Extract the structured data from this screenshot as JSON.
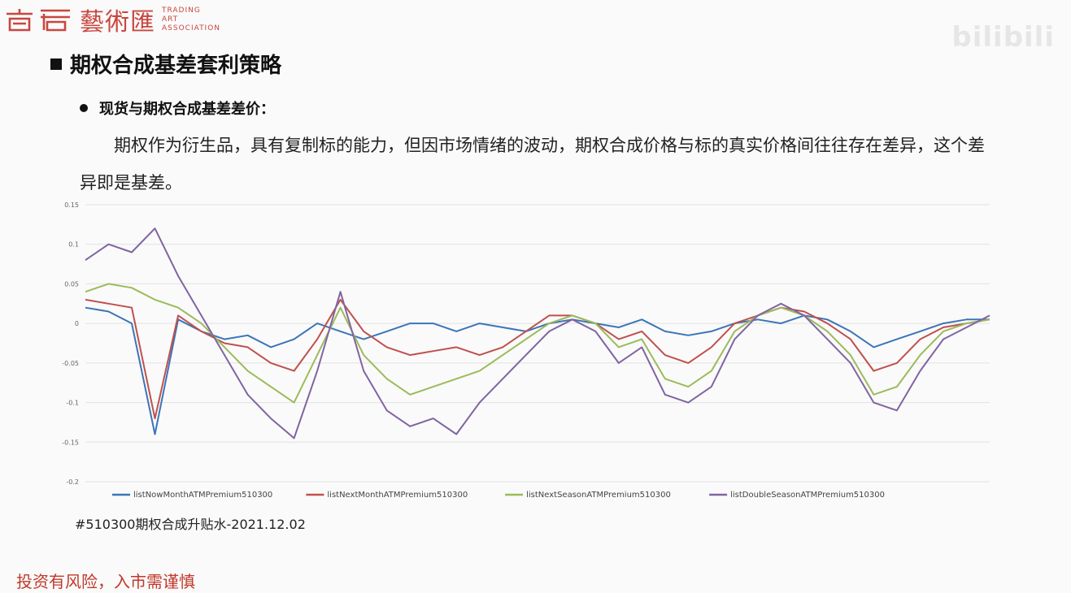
{
  "logo": {
    "cn": "藝術匯",
    "en_lines": [
      "TRADING",
      "ART",
      "ASSOCIATION"
    ]
  },
  "watermark": "bilibili",
  "slide": {
    "title": "期权合成基差套利策略",
    "bullet": "现货与期权合成基差差价：",
    "paragraph": "期权作为衍生品，具有复制标的能力，但因市场情绪的波动，期权合成价格与标的真实价格间往往存在差异，这个差异即是基差。",
    "caption": "#510300期权合成升贴水-2021.12.02",
    "disclaimer": "投资有风险，入市需谨慎"
  },
  "chart_data": {
    "type": "line",
    "title": "",
    "xlabel": "",
    "ylabel": "",
    "ylim": [
      -0.2,
      0.15
    ],
    "yticks": [
      0.15,
      0.1,
      0.05,
      0,
      -0.05,
      -0.1,
      -0.15,
      -0.2
    ],
    "ytick_labels": [
      "0.15",
      "0.1",
      "0.05",
      "0",
      "-0.05",
      "-0.1",
      "-0.15",
      "-0.2"
    ],
    "grid": true,
    "legend": "bottom",
    "n_points": 40,
    "series": [
      {
        "name": "listNowMonthATMPremium510300",
        "color": "#3b75b8",
        "values": [
          0.02,
          0.015,
          0.0,
          -0.14,
          0.005,
          -0.01,
          -0.02,
          -0.015,
          -0.03,
          -0.02,
          0.0,
          -0.01,
          -0.02,
          -0.01,
          0.0,
          0.0,
          -0.01,
          0.0,
          -0.005,
          -0.01,
          0.0,
          0.005,
          0.0,
          -0.005,
          0.005,
          -0.01,
          -0.015,
          -0.01,
          0.0,
          0.005,
          0.0,
          0.01,
          0.005,
          -0.01,
          -0.03,
          -0.02,
          -0.01,
          0.0,
          0.005,
          0.005
        ]
      },
      {
        "name": "listNextMonthATMPremium510300",
        "color": "#c0504d",
        "values": [
          0.03,
          0.025,
          0.02,
          -0.12,
          0.01,
          -0.01,
          -0.025,
          -0.03,
          -0.05,
          -0.06,
          -0.02,
          0.03,
          -0.01,
          -0.03,
          -0.04,
          -0.035,
          -0.03,
          -0.04,
          -0.03,
          -0.01,
          0.01,
          0.01,
          0.0,
          -0.02,
          -0.01,
          -0.04,
          -0.05,
          -0.03,
          0.0,
          0.01,
          0.02,
          0.015,
          0.0,
          -0.02,
          -0.06,
          -0.05,
          -0.02,
          -0.005,
          0.0,
          0.005
        ]
      },
      {
        "name": "listNextSeasonATMPremium510300",
        "color": "#9bbb59",
        "values": [
          0.04,
          0.05,
          0.045,
          0.03,
          0.02,
          0.0,
          -0.03,
          -0.06,
          -0.08,
          -0.1,
          -0.04,
          0.02,
          -0.04,
          -0.07,
          -0.09,
          -0.08,
          -0.07,
          -0.06,
          -0.04,
          -0.02,
          0.0,
          0.01,
          0.0,
          -0.03,
          -0.02,
          -0.07,
          -0.08,
          -0.06,
          -0.01,
          0.01,
          0.02,
          0.01,
          -0.01,
          -0.04,
          -0.09,
          -0.08,
          -0.04,
          -0.01,
          0.0,
          0.005
        ]
      },
      {
        "name": "listDoubleSeasonATMPremium510300",
        "color": "#8064a2",
        "values": [
          0.08,
          0.1,
          0.09,
          0.12,
          0.06,
          0.01,
          -0.04,
          -0.09,
          -0.12,
          -0.145,
          -0.06,
          0.04,
          -0.06,
          -0.11,
          -0.13,
          -0.12,
          -0.14,
          -0.1,
          -0.07,
          -0.04,
          -0.01,
          0.005,
          -0.01,
          -0.05,
          -0.03,
          -0.09,
          -0.1,
          -0.08,
          -0.02,
          0.01,
          0.025,
          0.01,
          -0.02,
          -0.05,
          -0.1,
          -0.11,
          -0.06,
          -0.02,
          -0.005,
          0.01
        ]
      }
    ]
  }
}
